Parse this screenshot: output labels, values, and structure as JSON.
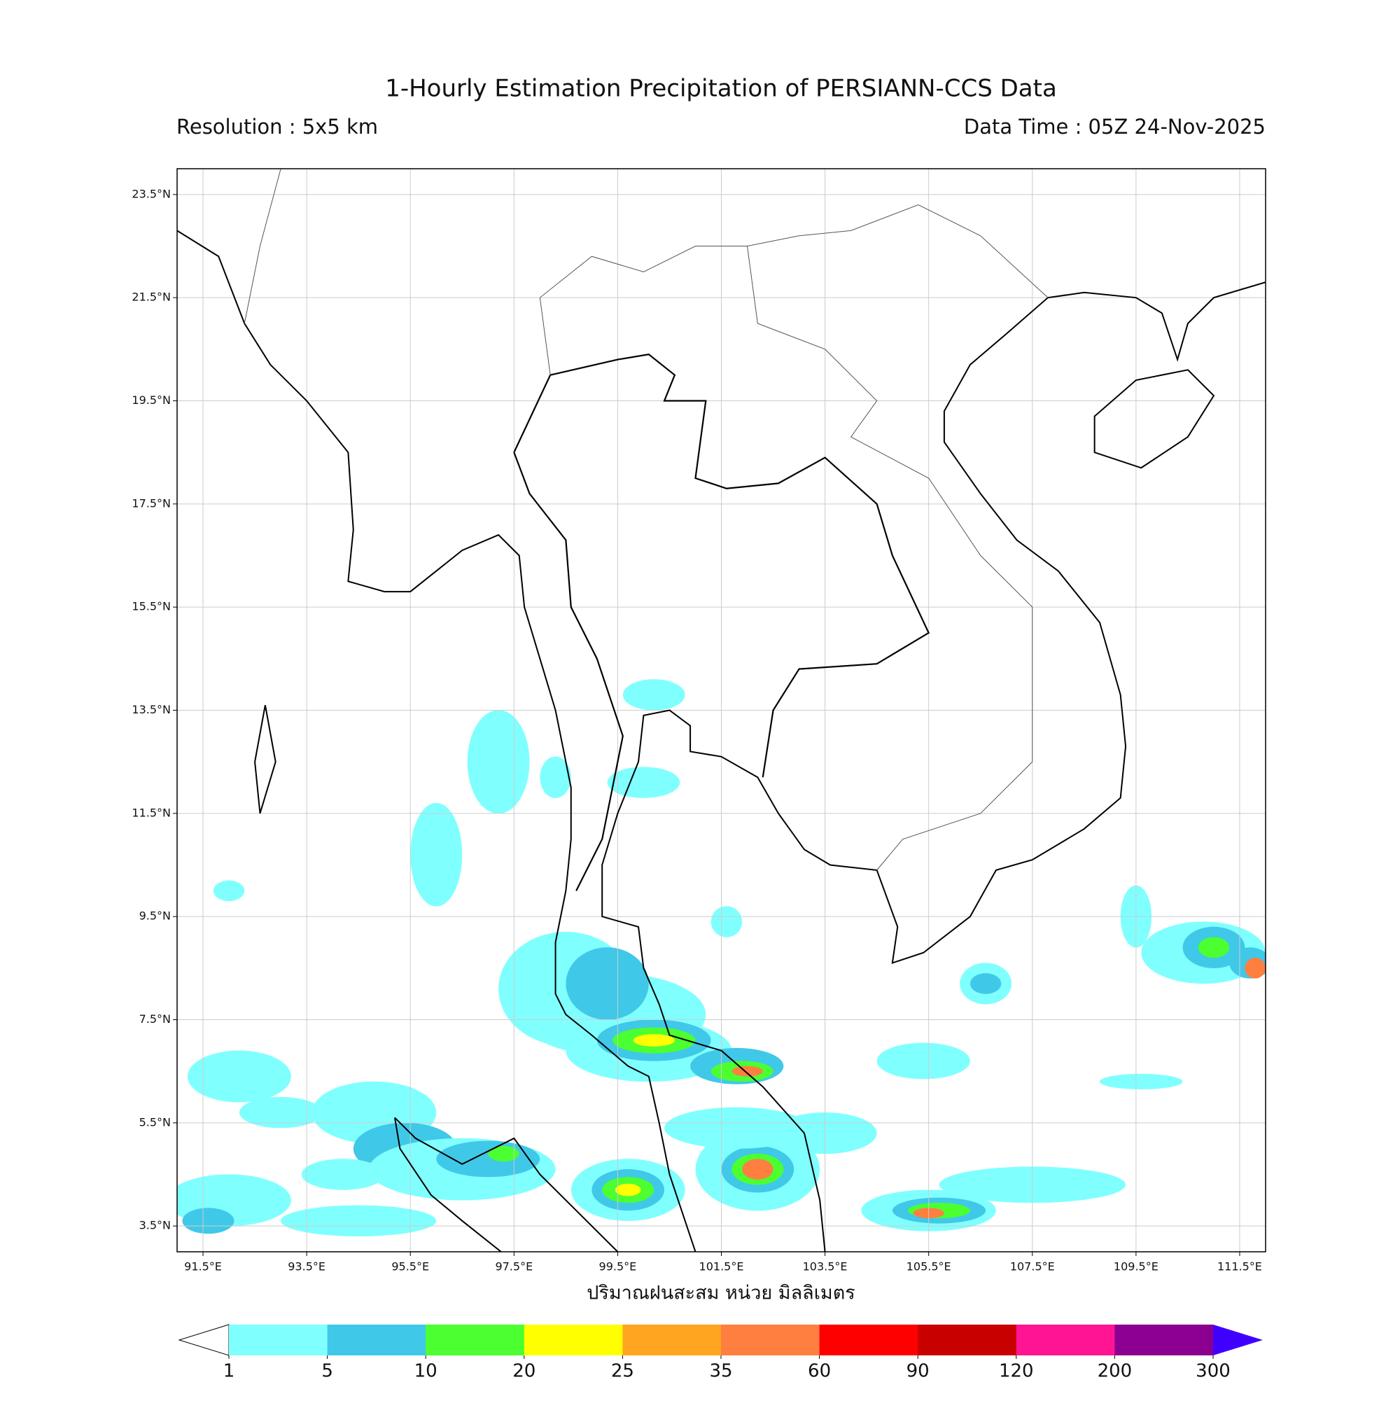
{
  "title": "1-Hourly Estimation Precipitation of PERSIANN-CCS Data",
  "resolution": "Resolution : 5x5 km",
  "data_time": "Data Time : 05Z 24-Nov-2025",
  "map": {
    "lonlim": [
      91,
      112
    ],
    "latlim": [
      3,
      24
    ],
    "lon_ticks": [
      {
        "value": 91.5,
        "label": "91.5°E"
      },
      {
        "value": 93.5,
        "label": "93.5°E"
      },
      {
        "value": 95.5,
        "label": "95.5°E"
      },
      {
        "value": 97.5,
        "label": "97.5°E"
      },
      {
        "value": 99.5,
        "label": "99.5°E"
      },
      {
        "value": 101.5,
        "label": "101.5°E"
      },
      {
        "value": 103.5,
        "label": "103.5°E"
      },
      {
        "value": 105.5,
        "label": "105.5°E"
      },
      {
        "value": 107.5,
        "label": "107.5°E"
      },
      {
        "value": 109.5,
        "label": "109.5°E"
      },
      {
        "value": 111.5,
        "label": "111.5°E"
      }
    ],
    "lat_ticks": [
      {
        "value": 23.5,
        "label": "23.5°N"
      },
      {
        "value": 21.5,
        "label": "21.5°N"
      },
      {
        "value": 19.5,
        "label": "19.5°N"
      },
      {
        "value": 17.5,
        "label": "17.5°N"
      },
      {
        "value": 15.5,
        "label": "15.5°N"
      },
      {
        "value": 13.5,
        "label": "13.5°N"
      },
      {
        "value": 11.5,
        "label": "11.5°N"
      },
      {
        "value": 9.5,
        "label": "9.5°N"
      },
      {
        "value": 7.5,
        "label": "7.5°N"
      },
      {
        "value": 5.5,
        "label": "5.5°N"
      },
      {
        "value": 3.5,
        "label": "3.5°N"
      }
    ],
    "grid": true
  },
  "x_axis_label": "ปริมาณฝนสะสม หน่วย มิลลิเมตร",
  "colorbar": {
    "bounds": [
      1,
      5,
      10,
      20,
      25,
      35,
      60,
      90,
      120,
      200,
      300
    ],
    "colors": [
      "#80ffff",
      "#40c8e8",
      "#4cff30",
      "#ffff00",
      "#ffa520",
      "#ff7f40",
      "#ff0000",
      "#c80000",
      "#ff1493",
      "#8b0090"
    ],
    "under_color": "#ffffff",
    "over_color": "#4000ff"
  }
}
